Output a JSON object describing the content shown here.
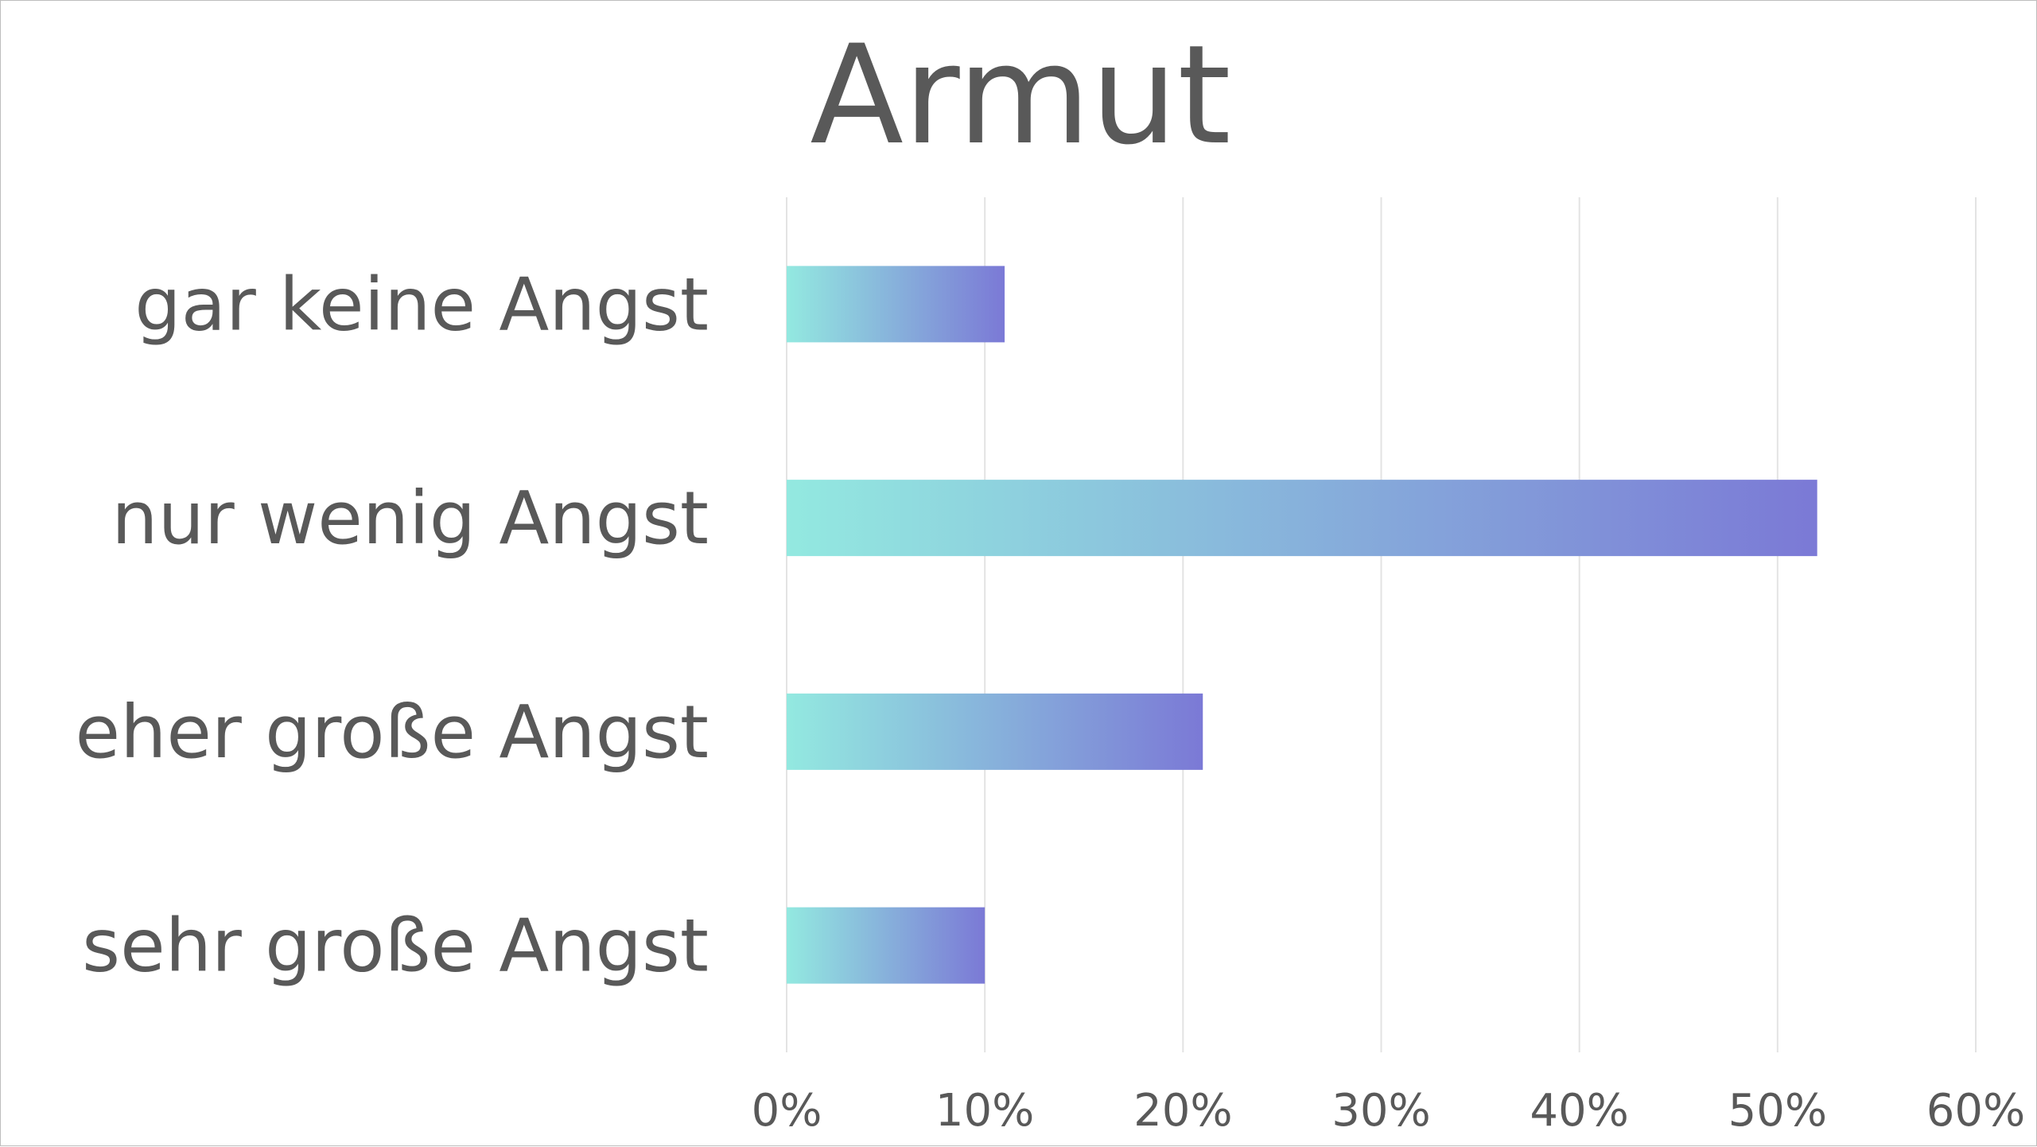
{
  "chart_data": {
    "type": "bar",
    "orientation": "horizontal",
    "title": "Armut",
    "categories": [
      "gar keine Angst",
      "nur wenig Angst",
      "eher große Angst",
      "sehr große Angst"
    ],
    "values": [
      0.11,
      0.52,
      0.21,
      0.1
    ],
    "xlim": [
      0,
      0.6
    ],
    "xticks": [
      0,
      0.1,
      0.2,
      0.3,
      0.4,
      0.5,
      0.6
    ],
    "xtick_labels": [
      "0%",
      "10%",
      "20%",
      "30%",
      "40%",
      "50%",
      "60%"
    ],
    "xlabel": "",
    "ylabel": "",
    "grid": "vertical",
    "legend": "none",
    "bar_gradient": [
      "#93e9e0",
      "#7b79d6"
    ],
    "text_color": "#595959",
    "grid_color": "#e3e3e3"
  }
}
